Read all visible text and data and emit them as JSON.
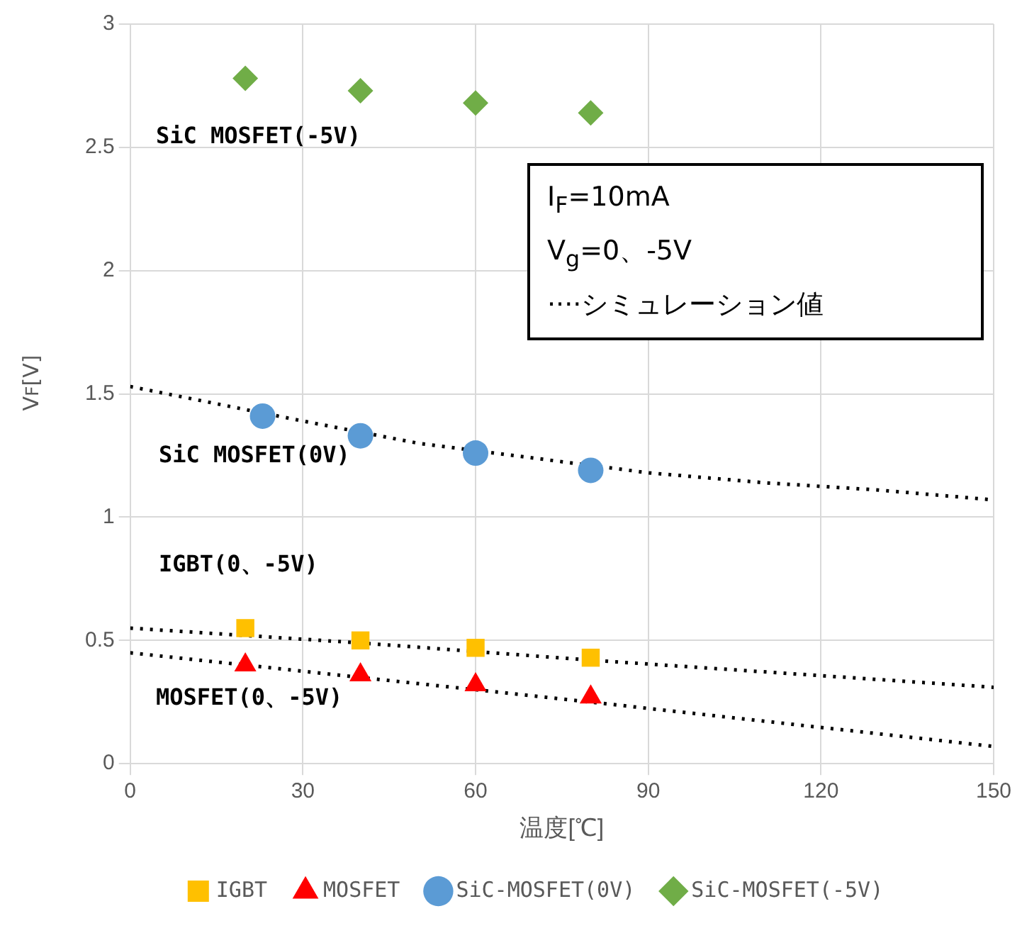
{
  "chart_data": {
    "type": "scatter",
    "xlabel": "温度[℃]",
    "ylabel": "V$_{F}$[V]",
    "xlim": [
      0,
      150
    ],
    "xticks": [
      0,
      30,
      60,
      90,
      120,
      150
    ],
    "ylim": [
      0,
      3
    ],
    "yticks": [
      0,
      0.5,
      1,
      1.5,
      2,
      2.5,
      3
    ],
    "grid": true,
    "legend": "bottom",
    "series": [
      {
        "name": "IGBT",
        "color": "#ffc000",
        "marker": "square",
        "x": [
          20,
          40,
          60,
          80
        ],
        "values": [
          0.55,
          0.5,
          0.47,
          0.43
        ]
      },
      {
        "name": "MOSFET",
        "color": "#ff0000",
        "marker": "triangle",
        "x": [
          20,
          40,
          60,
          80
        ],
        "values": [
          0.4,
          0.36,
          0.32,
          0.27
        ]
      },
      {
        "name": "SiC-MOSFET(0V)",
        "color": "#5b9bd5",
        "marker": "circle",
        "x": [
          23,
          40,
          60,
          80
        ],
        "values": [
          1.41,
          1.33,
          1.26,
          1.19
        ]
      },
      {
        "name": "SiC-MOSFET(-5V)",
        "color": "#70ad47",
        "marker": "diamond",
        "x": [
          20,
          40,
          60,
          80
        ],
        "values": [
          2.78,
          2.73,
          2.68,
          2.64
        ]
      },
      {
        "type": "line",
        "color": "#000000",
        "line_style": "dotted",
        "marker": "none",
        "x": [
          0,
          30,
          50,
          70,
          90,
          110,
          130,
          150
        ],
        "values": [
          1.53,
          1.39,
          1.3,
          1.24,
          1.18,
          1.14,
          1.11,
          1.07
        ]
      },
      {
        "type": "line",
        "color": "#000000",
        "line_style": "dotted",
        "marker": "none",
        "x": [
          0,
          40,
          80,
          150
        ],
        "values": [
          0.55,
          0.49,
          0.42,
          0.31
        ]
      },
      {
        "type": "line",
        "color": "#000000",
        "line_style": "dotted",
        "marker": "none",
        "x": [
          0,
          40,
          80,
          150
        ],
        "values": [
          0.45,
          0.35,
          0.25,
          0.07
        ]
      }
    ],
    "annotations": [
      "SiC MOSFET(-5V)",
      "SiC MOSFET(0V)",
      "IGBT(0、-5V)",
      "MOSFET(0、-5V)",
      "I$_{F}$=10mA",
      "V$_{g}$=0、-5V",
      "····シミュレーション値"
    ]
  }
}
